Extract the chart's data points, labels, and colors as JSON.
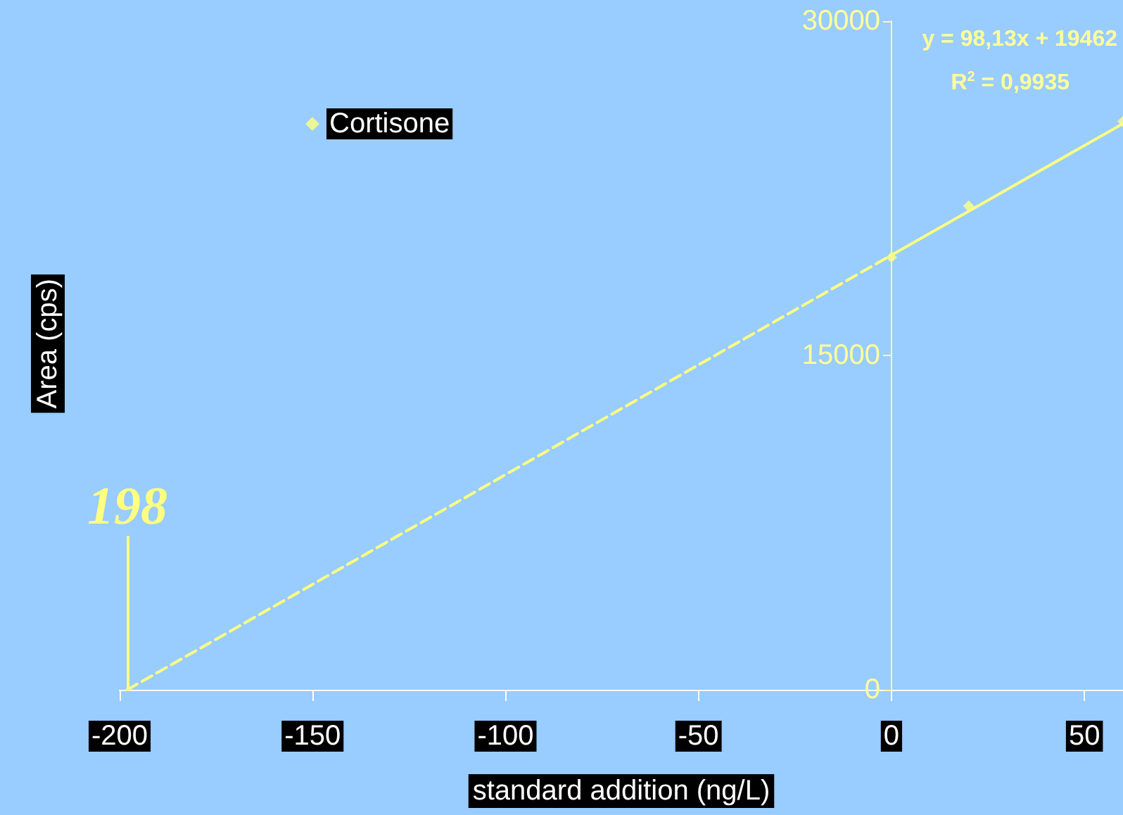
{
  "chart_data": {
    "type": "scatter",
    "xlabel": "standard addition (ng/L)",
    "ylabel": "Area (cps)",
    "annotations": [
      "y = 98,13x + 19462",
      "R$^{2}$ = 0,9935",
      {
        "text": "198",
        "x": -198,
        "y": 7000
      }
    ],
    "xlim": [
      -200,
      60
    ],
    "xticks": [
      -200,
      -150,
      -100,
      -50,
      0,
      50
    ],
    "ylim": [
      0,
      30000
    ],
    "yticks": [
      0,
      15000,
      30000
    ],
    "grid": false,
    "legend": "top left",
    "series": [
      {
        "name": "Cortisone",
        "color": "#ffff80",
        "marker": "diamond",
        "x": [
          0,
          20,
          60
        ],
        "values": [
          19400,
          21700,
          25500
        ]
      },
      {
        "type": "line",
        "color": "#ffff80",
        "line_style": "dashed",
        "x": [
          -198,
          0
        ],
        "values": [
          0,
          19500
        ]
      },
      {
        "type": "line",
        "color": "#ffff80",
        "line_style": "solid",
        "x": [
          0,
          60
        ],
        "values": [
          19500,
          25400
        ]
      }
    ],
    "ref_lines": [
      {
        "axis": "x",
        "value": -198,
        "color": "#ffff80"
      }
    ]
  }
}
